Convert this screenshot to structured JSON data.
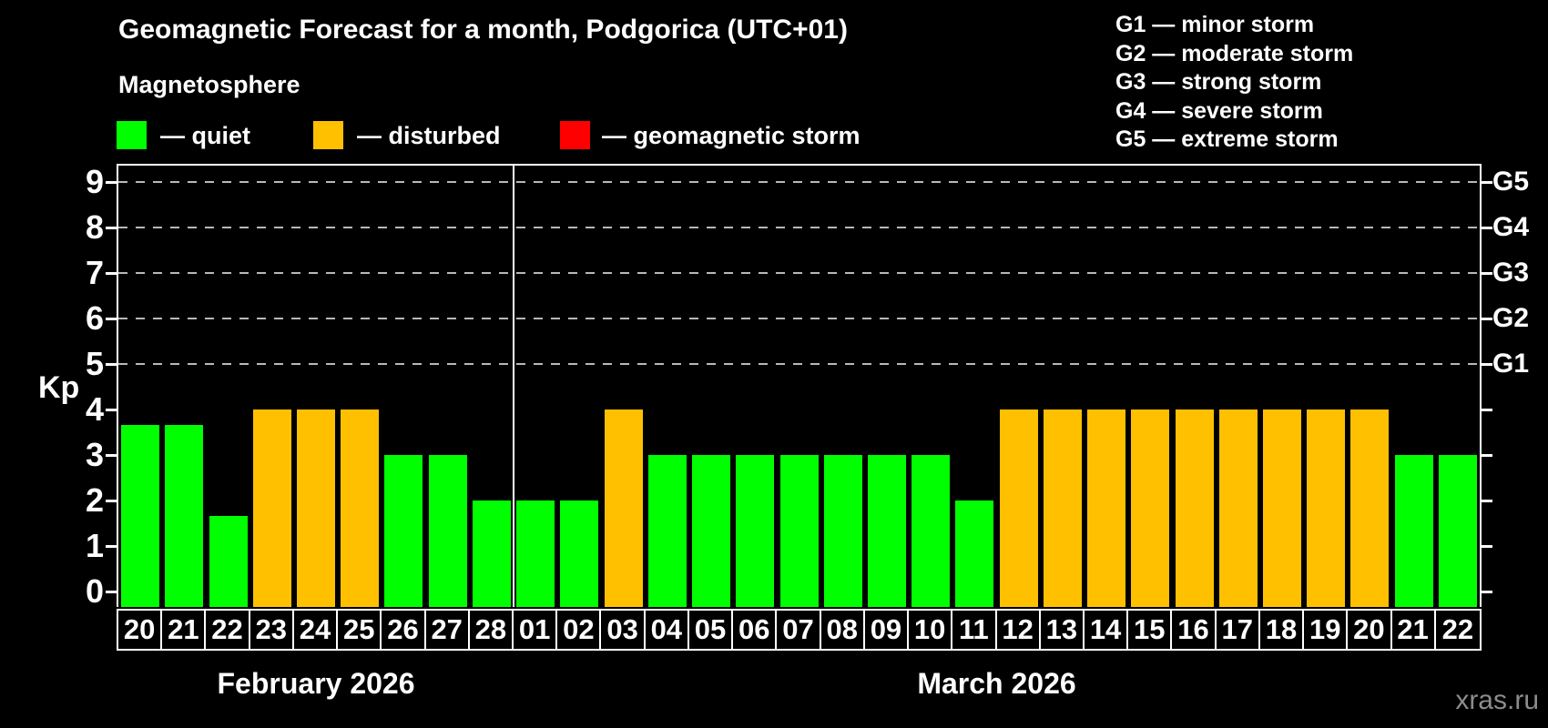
{
  "watermark": "xras.ru",
  "chart_data": {
    "type": "bar",
    "title": "Geomagnetic Forecast for a month, Podgorica (UTC+01)",
    "subtitle": "Magnetosphere",
    "ylabel": "Kp",
    "ylim": [
      -0.35,
      9.35
    ],
    "yticks": [
      0,
      1,
      2,
      3,
      4,
      5,
      6,
      7,
      8,
      9
    ],
    "grid": "horizontal dashed lines at Kp 5 through 9, legend top, black background",
    "gridlines_at": [
      5,
      6,
      7,
      8,
      9
    ],
    "colors": {
      "quiet": "#00ff00",
      "disturbed": "#ffc000",
      "storm": "#ff0000"
    },
    "legend": [
      {
        "key": "quiet",
        "label": "— quiet",
        "color": "#00ff00"
      },
      {
        "key": "disturbed",
        "label": "— disturbed",
        "color": "#ffc000"
      },
      {
        "key": "storm",
        "label": "— geomagnetic storm",
        "color": "#ff0000"
      }
    ],
    "g_scale_legend": [
      "G1 — minor storm",
      "G2 — moderate storm",
      "G3 — strong storm",
      "G4 — severe storm",
      "G5 — extreme storm"
    ],
    "right_axis": [
      {
        "kp": 5,
        "label": "G1"
      },
      {
        "kp": 6,
        "label": "G2"
      },
      {
        "kp": 7,
        "label": "G3"
      },
      {
        "kp": 8,
        "label": "G4"
      },
      {
        "kp": 9,
        "label": "G5"
      }
    ],
    "months": [
      {
        "label": "February 2026",
        "days": 9
      },
      {
        "label": "March 2026",
        "days": 22
      }
    ],
    "bars": [
      {
        "month": "February",
        "day": "20",
        "kp": 3.67,
        "status": "quiet"
      },
      {
        "month": "February",
        "day": "21",
        "kp": 3.67,
        "status": "quiet"
      },
      {
        "month": "February",
        "day": "22",
        "kp": 1.67,
        "status": "quiet"
      },
      {
        "month": "February",
        "day": "23",
        "kp": 4,
        "status": "disturbed"
      },
      {
        "month": "February",
        "day": "24",
        "kp": 4,
        "status": "disturbed"
      },
      {
        "month": "February",
        "day": "25",
        "kp": 4,
        "status": "disturbed"
      },
      {
        "month": "February",
        "day": "26",
        "kp": 3,
        "status": "quiet"
      },
      {
        "month": "February",
        "day": "27",
        "kp": 3,
        "status": "quiet"
      },
      {
        "month": "February",
        "day": "28",
        "kp": 2,
        "status": "quiet"
      },
      {
        "month": "March",
        "day": "01",
        "kp": 2,
        "status": "quiet"
      },
      {
        "month": "March",
        "day": "02",
        "kp": 2,
        "status": "quiet"
      },
      {
        "month": "March",
        "day": "03",
        "kp": 4,
        "status": "disturbed"
      },
      {
        "month": "March",
        "day": "04",
        "kp": 3,
        "status": "quiet"
      },
      {
        "month": "March",
        "day": "05",
        "kp": 3,
        "status": "quiet"
      },
      {
        "month": "March",
        "day": "06",
        "kp": 3,
        "status": "quiet"
      },
      {
        "month": "March",
        "day": "07",
        "kp": 3,
        "status": "quiet"
      },
      {
        "month": "March",
        "day": "08",
        "kp": 3,
        "status": "quiet"
      },
      {
        "month": "March",
        "day": "09",
        "kp": 3,
        "status": "quiet"
      },
      {
        "month": "March",
        "day": "10",
        "kp": 3,
        "status": "quiet"
      },
      {
        "month": "March",
        "day": "11",
        "kp": 2,
        "status": "quiet"
      },
      {
        "month": "March",
        "day": "12",
        "kp": 4,
        "status": "disturbed"
      },
      {
        "month": "March",
        "day": "13",
        "kp": 4,
        "status": "disturbed"
      },
      {
        "month": "March",
        "day": "14",
        "kp": 4,
        "status": "disturbed"
      },
      {
        "month": "March",
        "day": "15",
        "kp": 4,
        "status": "disturbed"
      },
      {
        "month": "March",
        "day": "16",
        "kp": 4,
        "status": "disturbed"
      },
      {
        "month": "March",
        "day": "17",
        "kp": 4,
        "status": "disturbed"
      },
      {
        "month": "March",
        "day": "18",
        "kp": 4,
        "status": "disturbed"
      },
      {
        "month": "March",
        "day": "19",
        "kp": 4,
        "status": "disturbed"
      },
      {
        "month": "March",
        "day": "20",
        "kp": 4,
        "status": "disturbed"
      },
      {
        "month": "March",
        "day": "21",
        "kp": 3,
        "status": "quiet"
      },
      {
        "month": "March",
        "day": "22",
        "kp": 3,
        "status": "quiet"
      }
    ]
  }
}
